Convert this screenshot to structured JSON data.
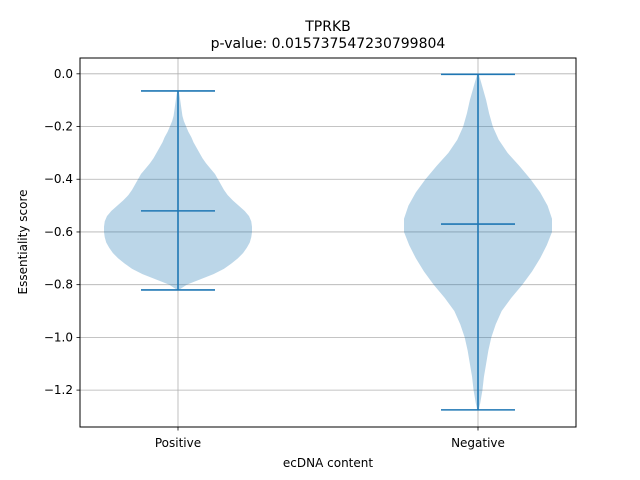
{
  "chart_data": {
    "type": "violin",
    "title": "TPRKB",
    "subtitle": "p-value: 0.015737547230799804",
    "xlabel": "ecDNA content",
    "ylabel": "Essentiality score",
    "categories": [
      "Positive",
      "Negative"
    ],
    "ylim": [
      -1.34,
      0.06
    ],
    "yticks": [
      0.0,
      -0.2,
      -0.4,
      -0.6,
      -0.8,
      -1.0,
      -1.2
    ],
    "ytick_labels": [
      "0.0",
      "−0.2",
      "−0.4",
      "−0.6",
      "−0.8",
      "−1.0",
      "−1.2"
    ],
    "grid": true,
    "colors": {
      "body": "#1f77b4",
      "body_opacity": 0.3,
      "lines": "#1f77b4"
    },
    "series": [
      {
        "category": "Positive",
        "min": -0.82,
        "max": -0.065,
        "mean": -0.52,
        "density": [
          [
            -0.82,
            0.01
          ],
          [
            -0.8,
            0.12
          ],
          [
            -0.78,
            0.3
          ],
          [
            -0.76,
            0.48
          ],
          [
            -0.74,
            0.62
          ],
          [
            -0.72,
            0.72
          ],
          [
            -0.7,
            0.81
          ],
          [
            -0.68,
            0.88
          ],
          [
            -0.66,
            0.93
          ],
          [
            -0.64,
            0.97
          ],
          [
            -0.62,
            0.99
          ],
          [
            -0.6,
            1.0
          ],
          [
            -0.58,
            1.0
          ],
          [
            -0.56,
            0.99
          ],
          [
            -0.54,
            0.96
          ],
          [
            -0.52,
            0.9
          ],
          [
            -0.5,
            0.82
          ],
          [
            -0.48,
            0.74
          ],
          [
            -0.46,
            0.67
          ],
          [
            -0.44,
            0.62
          ],
          [
            -0.42,
            0.58
          ],
          [
            -0.4,
            0.54
          ],
          [
            -0.38,
            0.5
          ],
          [
            -0.36,
            0.44
          ],
          [
            -0.34,
            0.38
          ],
          [
            -0.32,
            0.33
          ],
          [
            -0.3,
            0.29
          ],
          [
            -0.28,
            0.25
          ],
          [
            -0.26,
            0.21
          ],
          [
            -0.24,
            0.18
          ],
          [
            -0.22,
            0.14
          ],
          [
            -0.2,
            0.11
          ],
          [
            -0.18,
            0.08
          ],
          [
            -0.16,
            0.06
          ],
          [
            -0.14,
            0.05
          ],
          [
            -0.12,
            0.04
          ],
          [
            -0.1,
            0.03
          ],
          [
            -0.08,
            0.02
          ],
          [
            -0.065,
            0.01
          ]
        ]
      },
      {
        "category": "Negative",
        "min": -1.275,
        "max": -0.002,
        "mean": -0.57,
        "density": [
          [
            -1.275,
            0.01
          ],
          [
            -1.25,
            0.03
          ],
          [
            -1.2,
            0.06
          ],
          [
            -1.15,
            0.08
          ],
          [
            -1.1,
            0.11
          ],
          [
            -1.05,
            0.14
          ],
          [
            -1.0,
            0.18
          ],
          [
            -0.95,
            0.24
          ],
          [
            -0.9,
            0.32
          ],
          [
            -0.85,
            0.45
          ],
          [
            -0.8,
            0.6
          ],
          [
            -0.75,
            0.73
          ],
          [
            -0.7,
            0.84
          ],
          [
            -0.65,
            0.93
          ],
          [
            -0.6,
            1.0
          ],
          [
            -0.55,
            1.0
          ],
          [
            -0.5,
            0.94
          ],
          [
            -0.45,
            0.84
          ],
          [
            -0.4,
            0.71
          ],
          [
            -0.35,
            0.56
          ],
          [
            -0.3,
            0.4
          ],
          [
            -0.25,
            0.28
          ],
          [
            -0.2,
            0.2
          ],
          [
            -0.15,
            0.15
          ],
          [
            -0.1,
            0.11
          ],
          [
            -0.06,
            0.07
          ],
          [
            -0.03,
            0.04
          ],
          [
            -0.002,
            0.01
          ]
        ]
      }
    ]
  }
}
